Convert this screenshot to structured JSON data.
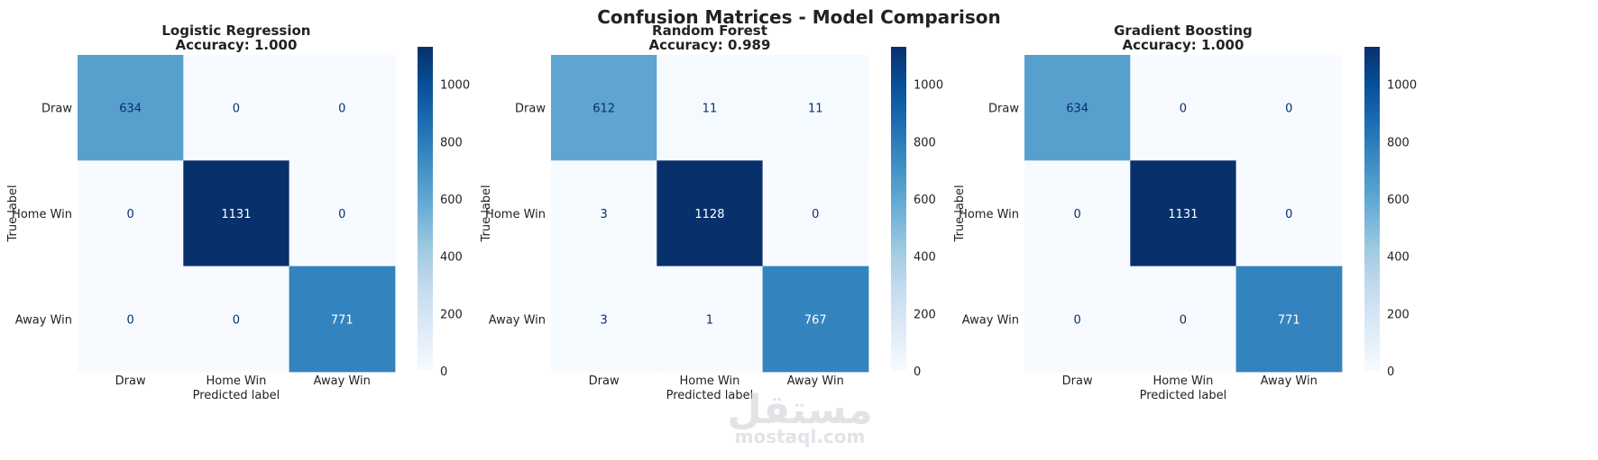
{
  "chart_data": {
    "suptitle": "Confusion Matrices - Model Comparison",
    "type": "heatmap",
    "colormap": "Blues",
    "color_range": [
      0,
      1131
    ],
    "colorbar_ticks": [
      0,
      200,
      400,
      600,
      800,
      1000
    ],
    "labels": [
      "Draw",
      "Home Win",
      "Away Win"
    ],
    "xlabel": "Predicted label",
    "ylabel": "True label",
    "panels": [
      {
        "title": "Logistic Regression",
        "subtitle": "Accuracy: 1.000",
        "matrix": [
          [
            634,
            0,
            0
          ],
          [
            0,
            1131,
            0
          ],
          [
            0,
            0,
            771
          ]
        ]
      },
      {
        "title": "Random Forest",
        "subtitle": "Accuracy: 0.989",
        "matrix": [
          [
            612,
            11,
            11
          ],
          [
            3,
            1128,
            0
          ],
          [
            3,
            1,
            767
          ]
        ]
      },
      {
        "title": "Gradient Boosting",
        "subtitle": "Accuracy: 1.000",
        "matrix": [
          [
            634,
            0,
            0
          ],
          [
            0,
            1131,
            0
          ],
          [
            0,
            0,
            771
          ]
        ]
      }
    ]
  },
  "watermark": {
    "logo_text": "مستقل",
    "url_text": "mostaql.com"
  }
}
